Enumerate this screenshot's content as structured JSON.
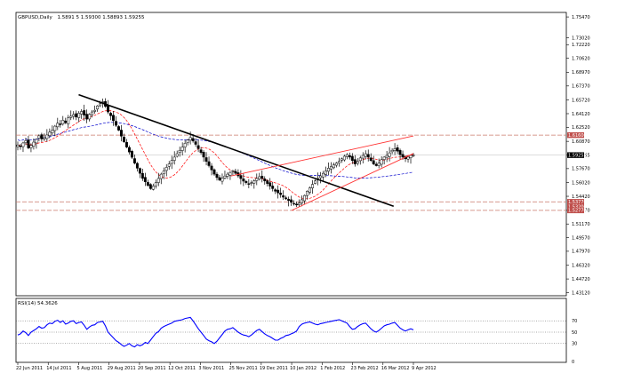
{
  "header": {
    "symbol_timeframe": "GBPUSD,Daily",
    "ohlc": "1.5891 5 1.59300 1.58893 1.59255"
  },
  "colors": {
    "background": "#ffffff",
    "candle": "#000000",
    "ma_fast": "#ff0000",
    "ma_slow": "#0000cc",
    "trendline": "#000000",
    "channel": "#ff3333",
    "support_resistance": "#c9786a",
    "rsi_line": "#0000ff",
    "price_tag_current": "#000000",
    "price_tag_level": "#c0504d"
  },
  "chart_data": [
    {
      "type": "candlestick",
      "title": "GBPUSD,Daily",
      "x": [
        "22 Jun 2011",
        "14 Jul 2011",
        "5 Aug 2011",
        "29 Aug 2011",
        "20 Sep 2011",
        "12 Oct 2011",
        "3 Nov 2011",
        "25 Nov 2011",
        "19 Dec 2011",
        "10 Jan 2012",
        "1 Feb 2012",
        "23 Feb 2012",
        "16 Mar 2012",
        "9 Apr 2012"
      ],
      "ylim": [
        1.4275,
        1.76
      ],
      "yticks": [
        "1.75470",
        "1.73020",
        "1.72220",
        "1.70620",
        "1.68970",
        "1.67370",
        "1.65720",
        "1.64120",
        "1.62520",
        "1.60870",
        "1.59255",
        "1.57670",
        "1.56020",
        "1.54420",
        "1.52770",
        "1.51170",
        "1.49570",
        "1.47970",
        "1.46320",
        "1.44720",
        "1.43120"
      ],
      "price_tags": [
        {
          "label": "1.61600",
          "value": 1.616,
          "kind": "level"
        },
        {
          "label": "1.59255",
          "value": 1.59255,
          "kind": "current"
        },
        {
          "label": "1.53770",
          "value": 1.5377,
          "kind": "level"
        },
        {
          "label": "1.53200",
          "value": 1.532,
          "kind": "level"
        },
        {
          "label": "1.52770",
          "value": 1.5277,
          "kind": "level"
        }
      ],
      "horizontal_levels": [
        1.616,
        1.5377,
        1.5277
      ],
      "trendlines": [
        {
          "name": "downtrend",
          "from": [
            "5 Aug 2011",
            1.6635
          ],
          "to": [
            "5 Mar 2012",
            1.5325
          ]
        },
        {
          "name": "channel-lower",
          "from": [
            "10 Jan 2012",
            1.5277
          ],
          "to": [
            "9 Apr 2012",
            1.5945
          ]
        },
        {
          "name": "channel-upper",
          "from": [
            "25 Nov 2011",
            1.568
          ],
          "to": [
            "9 Apr 2012",
            1.615
          ]
        }
      ],
      "closes": [
        1.6045,
        1.6025,
        1.6068,
        1.6095,
        1.601,
        1.604,
        1.6078,
        1.611,
        1.6152,
        1.6115,
        1.613,
        1.6162,
        1.6195,
        1.6218,
        1.6265,
        1.63,
        1.6282,
        1.6335,
        1.6305,
        1.6362,
        1.6382,
        1.6402,
        1.6372,
        1.6418,
        1.6438,
        1.6395,
        1.6348,
        1.6405,
        1.6432,
        1.6452,
        1.6503,
        1.6528,
        1.6552,
        1.6498,
        1.6432,
        1.6388,
        1.633,
        1.6275,
        1.6218,
        1.6148,
        1.6082,
        1.602,
        1.5962,
        1.59,
        1.5832,
        1.5772,
        1.5712,
        1.5652,
        1.5612,
        1.557,
        1.5532,
        1.5562,
        1.5602,
        1.5652,
        1.5702,
        1.574,
        1.5782,
        1.5822,
        1.5862,
        1.5902,
        1.5942,
        1.5982,
        1.602,
        1.6065,
        1.6102,
        1.6132,
        1.6092,
        1.6052,
        1.6002,
        1.5955,
        1.5902,
        1.5852,
        1.5802,
        1.5752,
        1.5702,
        1.5662,
        1.5632,
        1.5655,
        1.568,
        1.5702,
        1.5722,
        1.5742,
        1.5712,
        1.5682,
        1.565,
        1.562,
        1.5602,
        1.5582,
        1.5602,
        1.5622,
        1.5652,
        1.5672,
        1.5652,
        1.5622,
        1.5592,
        1.5562,
        1.5532,
        1.5502,
        1.5482,
        1.5462,
        1.5432,
        1.5412,
        1.5392,
        1.5372,
        1.5352,
        1.534,
        1.5362,
        1.5402,
        1.5452,
        1.5502,
        1.5542,
        1.5582,
        1.5622,
        1.5652,
        1.5682,
        1.5712,
        1.5742,
        1.5772,
        1.5792,
        1.5812,
        1.5832,
        1.5852,
        1.5882,
        1.5912,
        1.5932,
        1.5902,
        1.5862,
        1.5822,
        1.5852,
        1.5892,
        1.5922,
        1.5942,
        1.5902,
        1.5862,
        1.5822,
        1.5802,
        1.5832,
        1.5872,
        1.5902,
        1.5922,
        1.5952,
        1.5982,
        1.6002,
        1.5972,
        1.5932,
        1.5902,
        1.5882,
        1.5902,
        1.5922,
        1.5926
      ],
      "rsi": {
        "label": "RSI(14) 54.3626",
        "ylim": [
          0,
          100
        ],
        "levels": [
          70,
          50,
          30
        ],
        "yticks": [
          "70",
          "50",
          "30",
          "0"
        ],
        "values": [
          45,
          47,
          52,
          49,
          44,
          50,
          53,
          56,
          60,
          57,
          58,
          63,
          66,
          65,
          69,
          71,
          67,
          70,
          64,
          66,
          69,
          70,
          65,
          67,
          68,
          62,
          55,
          59,
          62,
          63,
          67,
          68,
          69,
          61,
          50,
          45,
          40,
          35,
          32,
          28,
          25,
          27,
          30,
          26,
          24,
          28,
          26,
          28,
          32,
          30,
          36,
          42,
          48,
          51,
          57,
          60,
          62,
          64,
          66,
          69,
          70,
          71,
          72,
          74,
          75,
          76,
          70,
          63,
          56,
          50,
          44,
          38,
          35,
          33,
          30,
          34,
          40,
          46,
          52,
          55,
          56,
          58,
          54,
          50,
          47,
          45,
          44,
          42,
          45,
          49,
          53,
          55,
          51,
          47,
          44,
          42,
          39,
          36,
          36,
          39,
          41,
          44,
          45,
          47,
          49,
          52,
          60,
          64,
          66,
          67,
          68,
          66,
          64,
          63,
          65,
          66,
          67,
          68,
          69,
          70,
          71,
          72,
          70,
          68,
          66,
          60,
          55,
          56,
          60,
          63,
          65,
          66,
          61,
          56,
          52,
          50,
          53,
          57,
          61,
          63,
          64,
          66,
          67,
          62,
          57,
          54,
          52,
          54,
          56,
          54
        ]
      }
    }
  ]
}
